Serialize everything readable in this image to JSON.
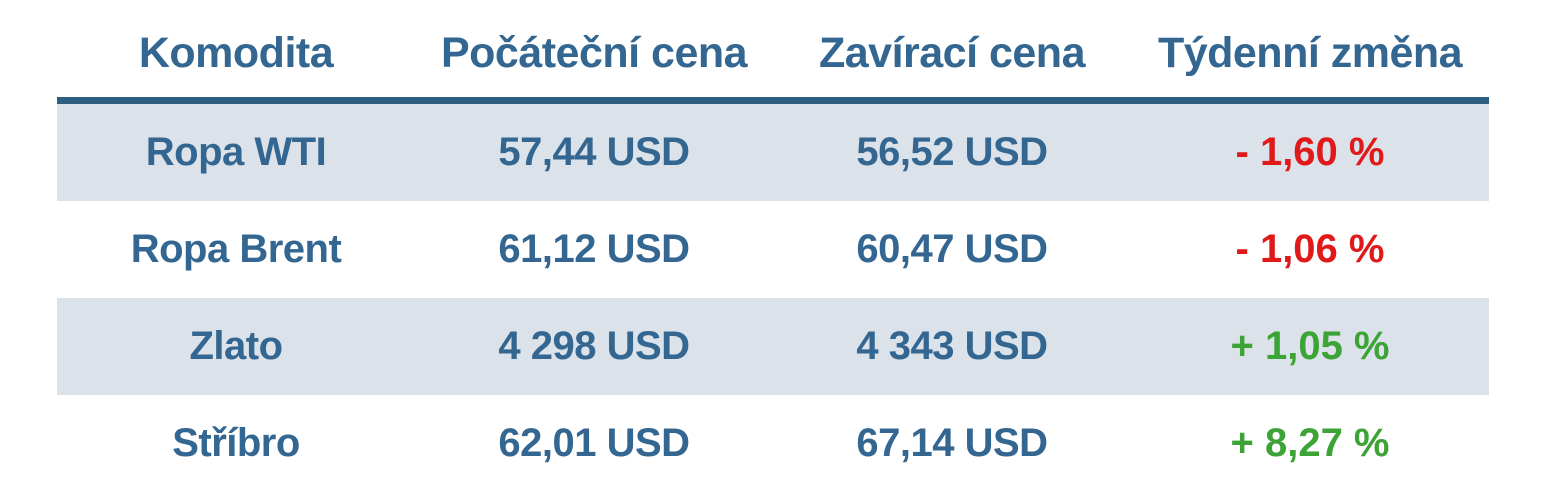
{
  "chart_data": {
    "type": "table",
    "title": "",
    "columns": [
      "Komodita",
      "Počáteční cena",
      "Zavírací cena",
      "Týdenní změna"
    ],
    "rows": [
      {
        "komodita": "Ropa WTI",
        "pocatecni_cena": "57,44 USD",
        "zaviraci_cena": "56,52 USD",
        "tydenni_zmena": "- 1,60 %",
        "zmena_smer": "down"
      },
      {
        "komodita": "Ropa Brent",
        "pocatecni_cena": "61,12 USD",
        "zaviraci_cena": "60,47 USD",
        "tydenni_zmena": "- 1,06 %",
        "zmena_smer": "down"
      },
      {
        "komodita": "Zlato",
        "pocatecni_cena": "4 298 USD",
        "zaviraci_cena": "4 343 USD",
        "tydenni_zmena": "+ 1,05 %",
        "zmena_smer": "up"
      },
      {
        "komodita": "Stříbro",
        "pocatecni_cena": "62,01 USD",
        "zaviraci_cena": "67,14 USD",
        "tydenni_zmena": "+ 8,27 %",
        "zmena_smer": "up"
      }
    ],
    "colors": {
      "text_blue": "#336690",
      "negative_red": "#e01a1a",
      "positive_green": "#3ca336",
      "row_shade": "#dbe2e9",
      "header_border": "#2f5f80",
      "background": "#ffffff"
    },
    "layout": {
      "striped": "odd rows shaded",
      "alignment": "center",
      "header_underline": true
    }
  }
}
